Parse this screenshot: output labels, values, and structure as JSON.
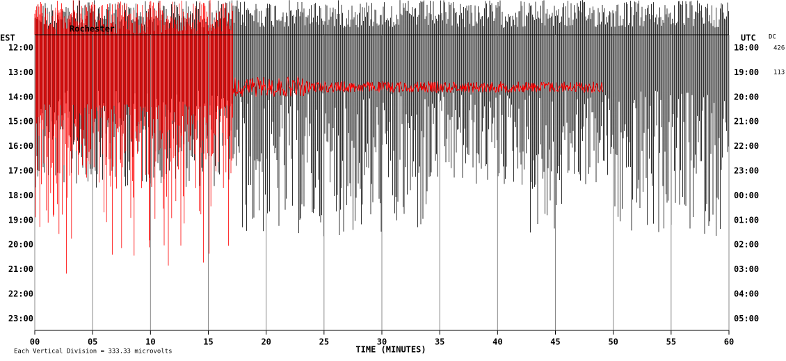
{
  "chart_data": {
    "type": "helicorder",
    "header_title": "Rochester",
    "left_axis_label": "EST",
    "right_axis_label": "UTC",
    "channel_label": "DC",
    "right_notes": [
      "426",
      "113"
    ],
    "left_rows": [
      "12:00",
      "13:00",
      "14:00",
      "15:00",
      "16:00",
      "17:00",
      "18:00",
      "19:00",
      "20:00",
      "21:00",
      "22:00",
      "23:00"
    ],
    "right_rows": [
      "18:00",
      "19:00",
      "20:00",
      "21:00",
      "22:00",
      "23:00",
      "00:00",
      "01:00",
      "02:00",
      "03:00",
      "04:00",
      "05:00"
    ],
    "xlabel": "TIME (MINUTES)",
    "xlim": [
      0,
      60
    ],
    "xticks": [
      {
        "value": 0,
        "label": "00"
      },
      {
        "value": 5,
        "label": "05"
      },
      10,
      15,
      20,
      25,
      30,
      35,
      40,
      45,
      50,
      55,
      60
    ],
    "footnote": "Each Vertical Division =  333.33 microvolts",
    "grid": true
  }
}
